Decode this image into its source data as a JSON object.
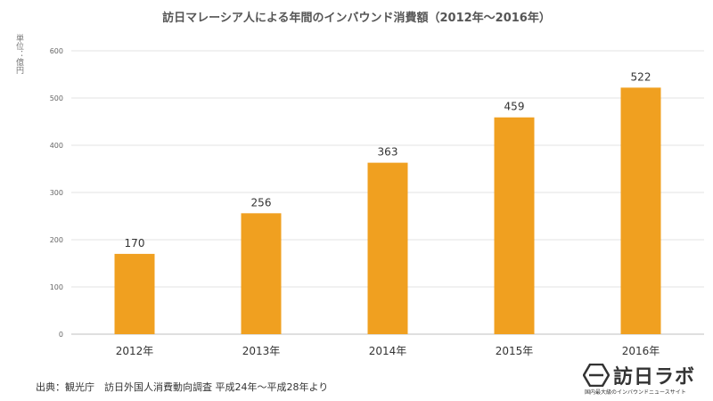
{
  "chart_data": {
    "type": "bar",
    "title": "訪日マレーシア人による年間のインバウンド消費額（2012年～2016年）",
    "ylabel": "単位：億円",
    "categories": [
      "2012年",
      "2013年",
      "2014年",
      "2015年",
      "2016年"
    ],
    "values": [
      170,
      256,
      363,
      459,
      522
    ],
    "ylim": [
      0,
      600
    ],
    "yticks": [
      0,
      100,
      200,
      300,
      400,
      500,
      600
    ],
    "grid": true,
    "bar_color": "#F0A020",
    "data_labels": true
  },
  "source": "出典：観光庁　訪日外国人消費動向調査 平成24年～平成28年より",
  "logo": {
    "name": "訪日ラボ",
    "tagline": "国内最大級のインバウンドニュースサイト"
  }
}
